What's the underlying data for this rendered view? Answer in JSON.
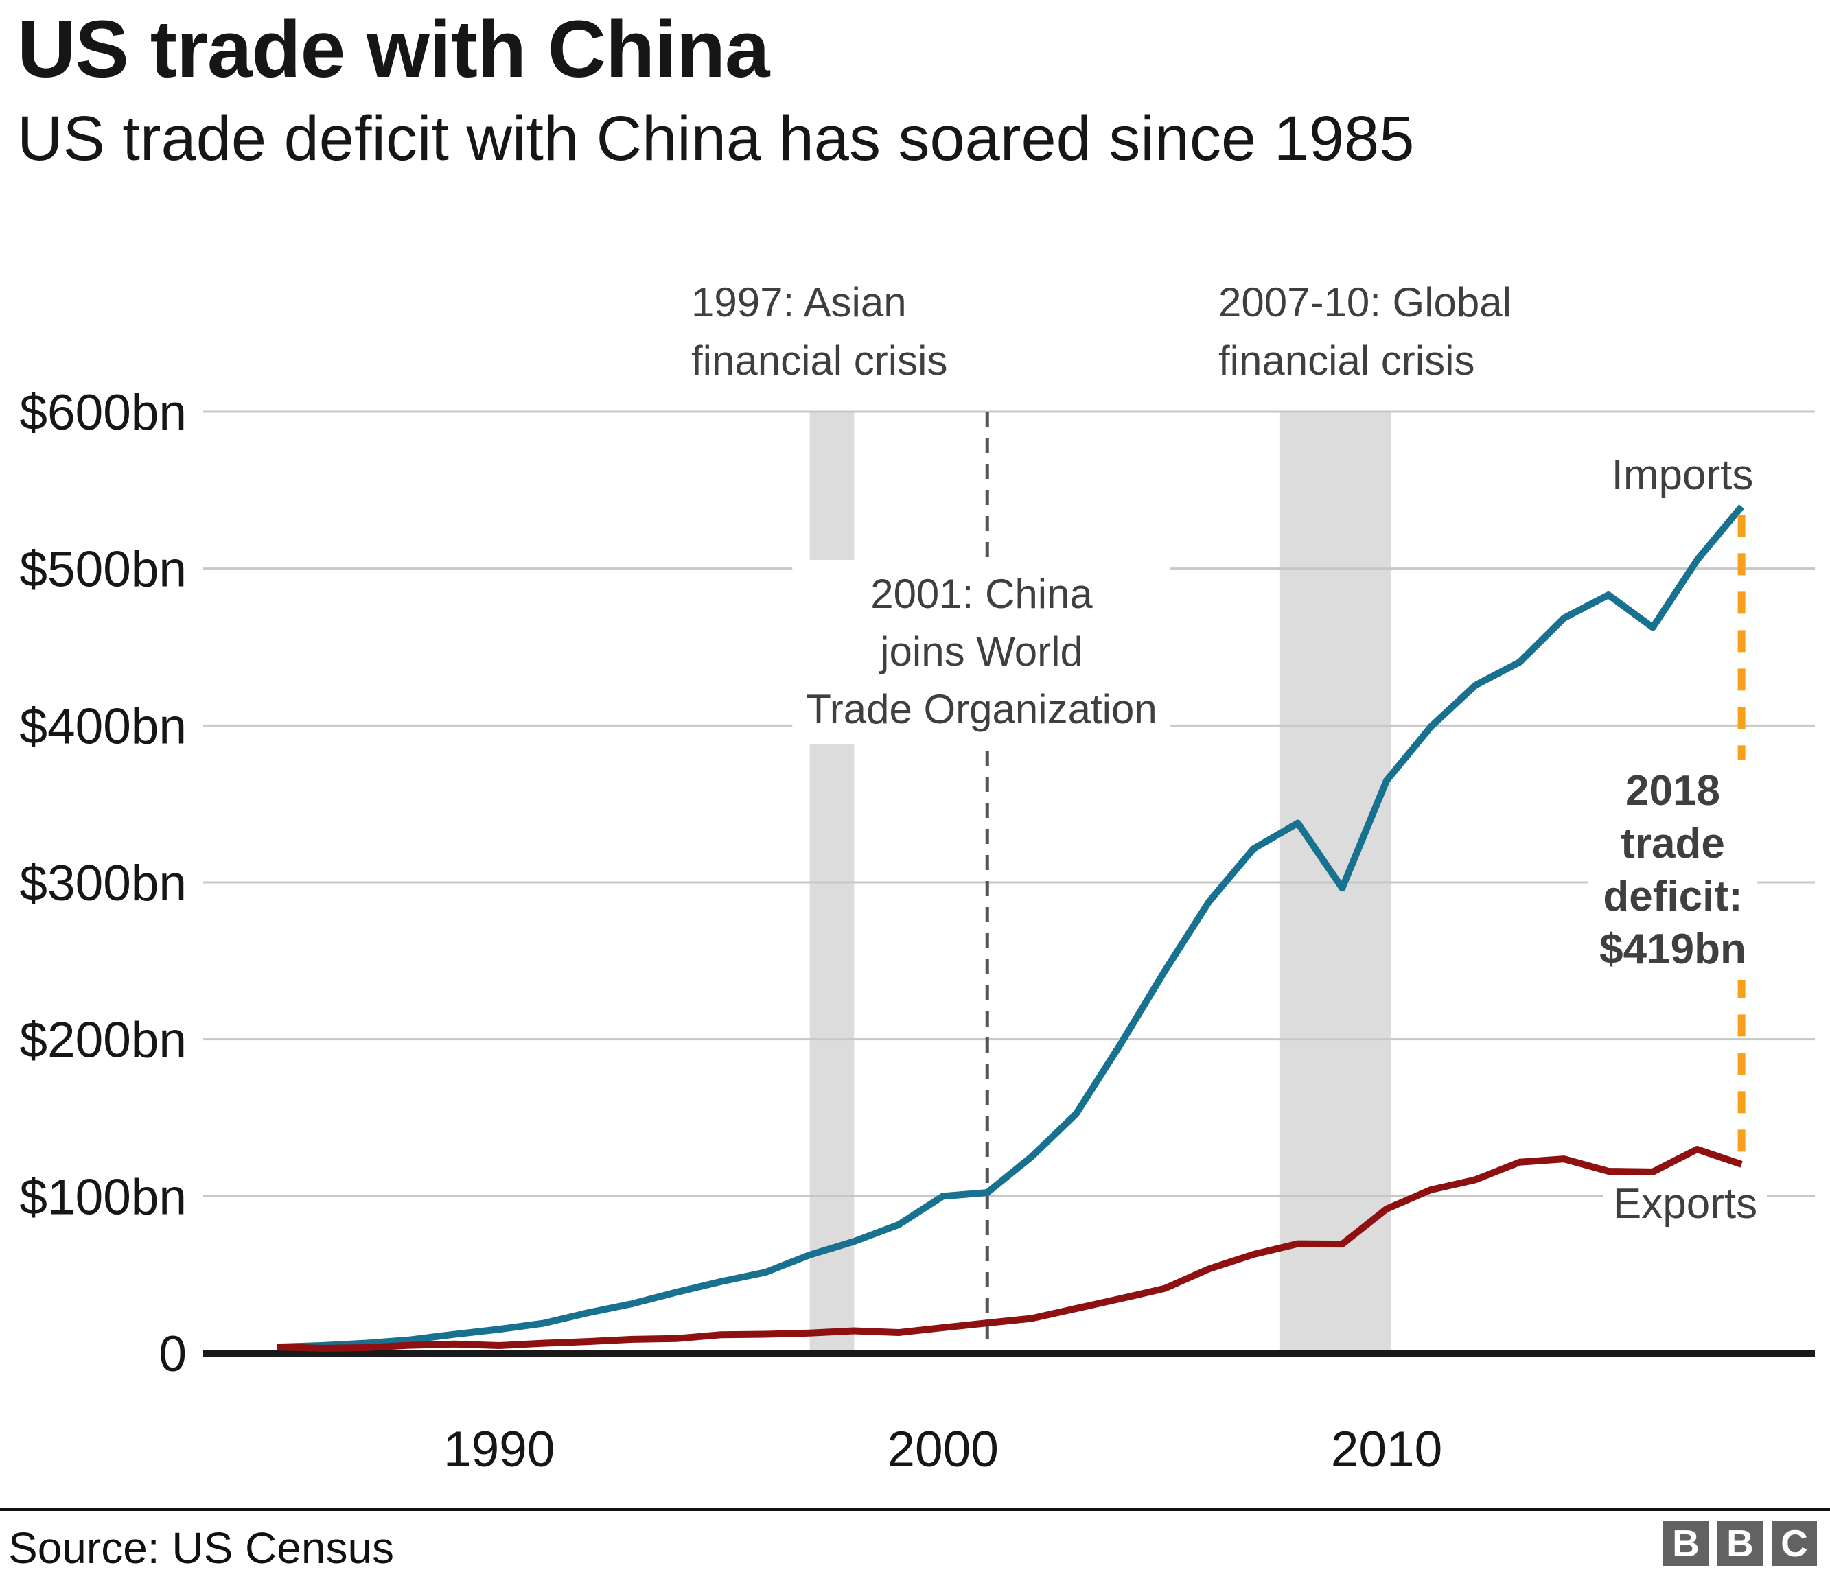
{
  "header": {
    "title": "US trade with China",
    "subtitle": "US trade deficit with China has soared since 1985"
  },
  "annotations": {
    "asian_crisis": "1997: Asian\nfinancial crisis",
    "wto": "2001: China\njoins World\nTrade Organization",
    "global_crisis": "2007-10: Global\nfinancial crisis",
    "imports_label": "Imports",
    "exports_label": "Exports",
    "deficit_label": "2018\ntrade deficit:\n$419bn"
  },
  "footer": {
    "source": "Source: US Census",
    "logo_letters": {
      "b1": "B",
      "b2": "B",
      "b3": "C"
    }
  },
  "colors": {
    "imports": "#17718f",
    "exports": "#8e1010",
    "deficit": "#f7a01c",
    "band": "#dcdcdc",
    "grid": "#c7c7c7",
    "event_line": "#545454",
    "axis": "#1a1a1a"
  },
  "chart_data": {
    "type": "line",
    "title": "US trade with China",
    "subtitle": "US trade deficit with China has soared since 1985",
    "x": [
      1985,
      1986,
      1987,
      1988,
      1989,
      1990,
      1991,
      1992,
      1993,
      1994,
      1995,
      1996,
      1997,
      1998,
      1999,
      2000,
      2001,
      2002,
      2003,
      2004,
      2005,
      2006,
      2007,
      2008,
      2009,
      2010,
      2011,
      2012,
      2013,
      2014,
      2015,
      2016,
      2017,
      2018
    ],
    "series": [
      {
        "name": "Imports",
        "color": "#17718f",
        "values": [
          3.9,
          4.8,
          6.3,
          8.5,
          12.0,
          15.2,
          19.0,
          25.7,
          31.5,
          38.8,
          45.6,
          51.5,
          62.6,
          71.2,
          81.8,
          100.0,
          102.3,
          125.2,
          152.4,
          196.7,
          243.5,
          287.8,
          321.4,
          337.8,
          296.4,
          364.9,
          399.3,
          425.6,
          440.4,
          468.5,
          483.2,
          462.5,
          505.5,
          539.5
        ]
      },
      {
        "name": "Exports",
        "color": "#8e1010",
        "values": [
          3.9,
          3.1,
          3.5,
          5.0,
          5.8,
          4.8,
          6.3,
          7.4,
          8.8,
          9.3,
          11.7,
          12.0,
          12.8,
          14.2,
          13.1,
          16.2,
          19.2,
          22.1,
          28.4,
          34.7,
          41.2,
          53.7,
          62.9,
          69.7,
          69.5,
          91.9,
          104.1,
          110.5,
          121.7,
          123.7,
          115.9,
          115.5,
          129.9,
          120.3
        ]
      }
    ],
    "ylim": [
      0,
      600
    ],
    "yticks": [
      {
        "value": 0,
        "label": "0"
      },
      {
        "value": 100,
        "label": "$100bn"
      },
      {
        "value": 200,
        "label": "$200bn"
      },
      {
        "value": 300,
        "label": "$300bn"
      },
      {
        "value": 400,
        "label": "$400bn"
      },
      {
        "value": 500,
        "label": "$500bn"
      },
      {
        "value": 600,
        "label": "$600bn"
      }
    ],
    "xticks": [
      {
        "value": 1990,
        "label": "1990"
      },
      {
        "value": 2000,
        "label": "2000"
      },
      {
        "value": 2010,
        "label": "2010"
      }
    ],
    "bands": [
      {
        "from": 1997,
        "to": 1998,
        "label": "1997: Asian financial crisis"
      },
      {
        "from": 2007.6,
        "to": 2010.1,
        "label": "2007-10: Global financial crisis"
      }
    ],
    "event_line": {
      "year": 2001,
      "label": "2001: China joins World Trade Organization"
    },
    "deficit_line": {
      "year": 2018,
      "label": "2018 trade deficit: $419bn",
      "value": "$419bn",
      "from_series": "Imports",
      "to_series": "Exports"
    },
    "grid": true,
    "legend_position": "inline-labels"
  }
}
